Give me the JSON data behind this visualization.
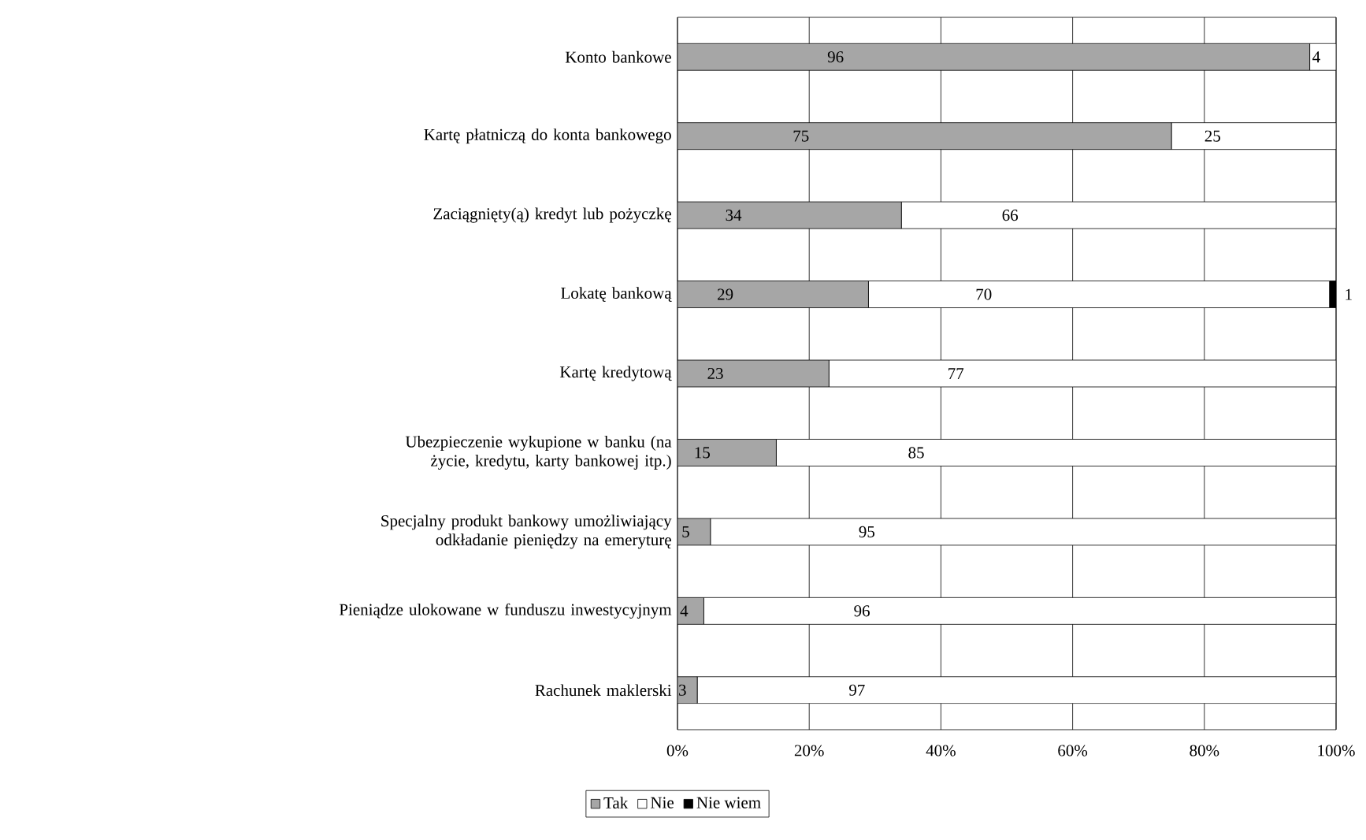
{
  "chart_data": {
    "type": "bar",
    "orientation": "horizontal",
    "stacked": true,
    "categories": [
      "Konto bankowe",
      "Kartę płatniczą do konta bankowego",
      "Zaciągnięty(ą) kredyt lub pożyczkę",
      "Lokatę bankową",
      "Kartę kredytową",
      "Ubezpieczenie wykupione w banku (na życie, kredytu, karty bankowej itp.)",
      "Specjalny produkt bankowy umożliwiający odkładanie pieniędzy na emeryturę",
      "Pieniądze ulokowane w funduszu inwestycyjnym",
      "Rachunek maklerski"
    ],
    "series": [
      {
        "name": "Tak",
        "color": "#a6a6a6",
        "values": [
          96,
          75,
          34,
          29,
          23,
          15,
          5,
          4,
          3
        ]
      },
      {
        "name": "Nie",
        "color": "#ffffff",
        "values": [
          4,
          25,
          66,
          70,
          77,
          85,
          95,
          96,
          97
        ]
      },
      {
        "name": "Nie wiem",
        "color": "#000000",
        "values": [
          null,
          null,
          null,
          1,
          null,
          null,
          null,
          null,
          null
        ]
      }
    ],
    "xlim": [
      0,
      100
    ],
    "xticks": [
      {
        "value": 0,
        "label": "0%"
      },
      {
        "value": 20,
        "label": "20%"
      },
      {
        "value": 40,
        "label": "40%"
      },
      {
        "value": 60,
        "label": "60%"
      },
      {
        "value": 80,
        "label": "80%"
      },
      {
        "value": 100,
        "label": "100%"
      }
    ],
    "grid": "x",
    "legend": "bottom",
    "data_labels": true
  }
}
